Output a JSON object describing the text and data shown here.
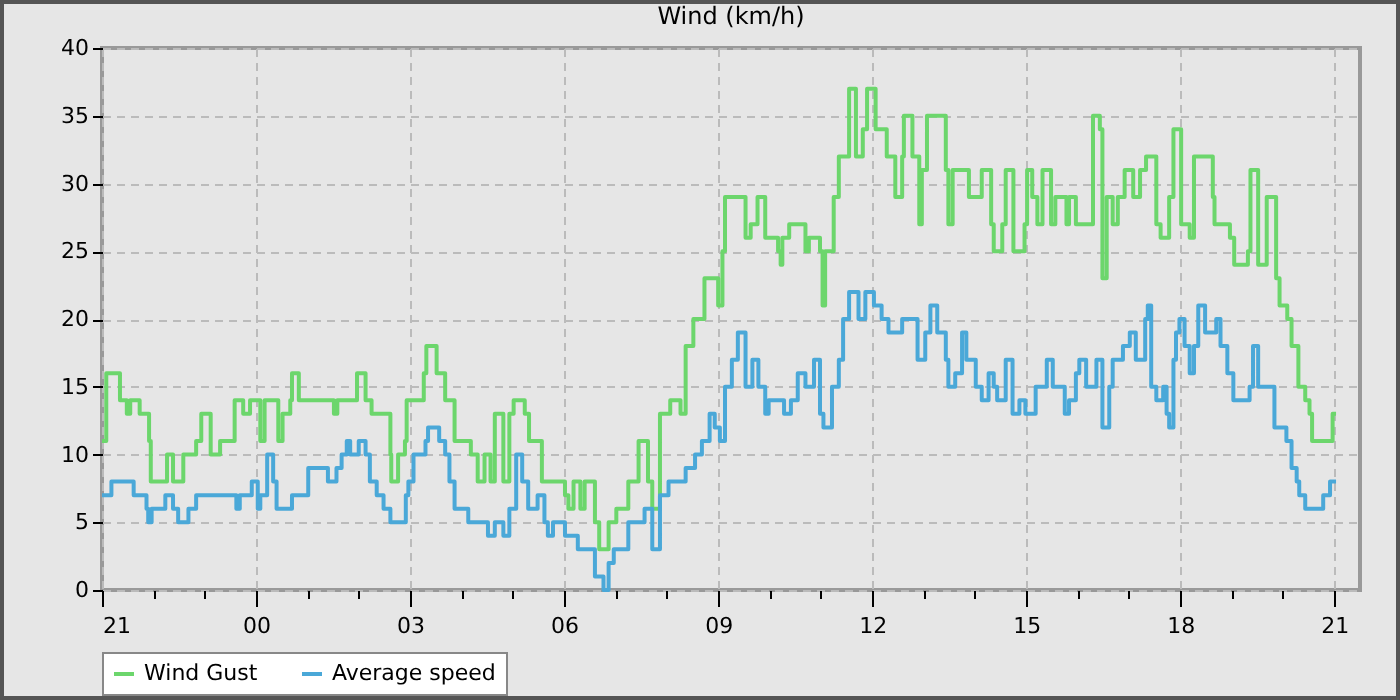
{
  "chart_data": {
    "type": "step",
    "title": "Wind (km/h)",
    "xlim": [
      "--01-01T21:00",
      "--01-02T21:30"
    ],
    "ylim": [
      0,
      40
    ],
    "xticks": [
      {
        "value": "--01-01T21:00",
        "label": "21"
      },
      {
        "value": "--01-01T22:00",
        "label": null
      },
      {
        "value": "--01-01T23:00",
        "label": null
      },
      {
        "value": "--01-02T00:00",
        "label": "00"
      },
      {
        "value": "--01-02T01:00",
        "label": null
      },
      {
        "value": "--01-02T02:00",
        "label": null
      },
      {
        "value": "--01-02T03:00",
        "label": "03"
      },
      {
        "value": "--01-02T04:00",
        "label": null
      },
      {
        "value": "--01-02T05:00",
        "label": null
      },
      {
        "value": "--01-02T06:00",
        "label": "06"
      },
      {
        "value": "--01-02T07:00",
        "label": null
      },
      {
        "value": "--01-02T08:00",
        "label": null
      },
      {
        "value": "--01-02T09:00",
        "label": "09"
      },
      {
        "value": "--01-02T10:00",
        "label": null
      },
      {
        "value": "--01-02T11:00",
        "label": null
      },
      {
        "value": "--01-02T12:00",
        "label": "12"
      },
      {
        "value": "--01-02T13:00",
        "label": null
      },
      {
        "value": "--01-02T14:00",
        "label": null
      },
      {
        "value": "--01-02T15:00",
        "label": "15"
      },
      {
        "value": "--01-02T16:00",
        "label": null
      },
      {
        "value": "--01-02T17:00",
        "label": null
      },
      {
        "value": "--01-02T18:00",
        "label": "18"
      },
      {
        "value": "--01-02T19:00",
        "label": null
      },
      {
        "value": "--01-02T20:00",
        "label": null
      },
      {
        "value": "--01-02T21:00",
        "label": "21"
      }
    ],
    "yticks": [
      0,
      5,
      10,
      15,
      20,
      25,
      30,
      35,
      40
    ],
    "grid": true,
    "legend": "bottom",
    "line_style": "solid",
    "marker": "none",
    "series": [
      {
        "name": "Wind Gust",
        "color": "#6cd66c",
        "x": [
          "--01-01T21:00",
          "--01-01T21:05",
          "--01-01T21:21",
          "--01-01T21:29",
          "--01-01T21:33",
          "--01-01T21:44",
          "--01-01T21:55",
          "--01-01T21:57",
          "--01-01T22:16",
          "--01-01T22:23",
          "--01-01T22:35",
          "--01-01T22:50",
          "--01-01T22:56",
          "--01-01T23:07",
          "--01-01T23:18",
          "--01-01T23:35",
          "--01-01T23:45",
          "--01-01T23:53",
          "--01-02T00:05",
          "--01-02T00:10",
          "--01-02T00:26",
          "--01-02T00:31",
          "--01-02T00:40",
          "--01-02T00:42",
          "--01-02T00:50",
          "--01-02T01:31",
          "--01-02T01:35",
          "--01-02T01:58",
          "--01-02T02:08",
          "--01-02T02:15",
          "--01-02T02:37",
          "--01-02T02:38",
          "--01-02T02:46",
          "--01-02T02:54",
          "--01-02T02:56",
          "--01-02T03:16",
          "--01-02T03:19",
          "--01-02T03:31",
          "--01-02T03:41",
          "--01-02T03:52",
          "--01-02T04:11",
          "--01-02T04:19",
          "--01-02T04:27",
          "--01-02T04:34",
          "--01-02T04:39",
          "--01-02T04:49",
          "--01-02T04:56",
          "--01-02T05:01",
          "--01-02T05:14",
          "--01-02T05:19",
          "--01-02T05:34",
          "--01-02T06:01",
          "--01-02T06:05",
          "--01-02T06:11",
          "--01-02T06:19",
          "--01-02T06:24",
          "--01-02T06:36",
          "--01-02T06:41",
          "--01-02T06:52",
          "--01-02T07:01",
          "--01-02T07:15",
          "--01-02T07:27",
          "--01-02T07:38",
          "--01-02T07:43",
          "--01-02T07:52",
          "--01-02T08:04",
          "--01-02T08:16",
          "--01-02T08:22",
          "--01-02T08:31",
          "--01-02T08:44",
          "--01-02T09:00",
          "--01-02T09:05",
          "--01-02T09:08",
          "--01-02T09:32",
          "--01-02T09:38",
          "--01-02T09:46",
          "--01-02T09:55",
          "--01-02T10:10",
          "--01-02T10:13",
          "--01-02T10:15",
          "--01-02T10:23",
          "--01-02T10:42",
          "--01-02T10:46",
          "--01-02T10:59",
          "--01-02T11:02",
          "--01-02T11:05",
          "--01-02T11:15",
          "--01-02T11:21",
          "--01-02T11:33",
          "--01-02T11:41",
          "--01-02T11:49",
          "--01-02T11:54",
          "--01-02T12:04",
          "--01-02T12:17",
          "--01-02T12:27",
          "--01-02T12:35",
          "--01-02T12:37",
          "--01-02T12:47",
          "--01-02T12:55",
          "--01-02T12:58",
          "--01-02T13:04",
          "--01-02T13:26",
          "--01-02T13:29",
          "--01-02T13:34",
          "--01-02T13:53",
          "--01-02T14:08",
          "--01-02T14:19",
          "--01-02T14:22",
          "--01-02T14:32",
          "--01-02T14:36",
          "--01-02T14:45",
          "--01-02T14:58",
          "--01-02T15:01",
          "--01-02T15:07",
          "--01-02T15:13",
          "--01-02T15:19",
          "--01-02T15:29",
          "--01-02T15:34",
          "--01-02T15:47",
          "--01-02T15:50",
          "--01-02T15:58",
          "--01-02T16:18",
          "--01-02T16:26",
          "--01-02T16:29",
          "--01-02T16:34",
          "--01-02T16:41",
          "--01-02T16:47",
          "--01-02T16:55",
          "--01-02T17:05",
          "--01-02T17:13",
          "--01-02T17:20",
          "--01-02T17:32",
          "--01-02T17:37",
          "--01-02T17:47",
          "--01-02T17:52",
          "--01-02T18:01",
          "--01-02T18:11",
          "--01-02T18:16",
          "--01-02T18:38",
          "--01-02T18:40",
          "--01-02T18:58",
          "--01-02T19:03",
          "--01-02T19:19",
          "--01-02T19:22",
          "--01-02T19:31",
          "--01-02T19:41",
          "--01-02T19:52",
          "--01-02T19:56",
          "--01-02T20:05",
          "--01-02T20:10",
          "--01-02T20:18",
          "--01-02T20:26",
          "--01-02T20:31",
          "--01-02T20:34",
          "--01-02T20:58",
          "--01-02T21:02"
        ],
        "values": [
          11,
          16,
          14,
          13,
          14,
          13,
          11,
          8,
          10,
          8,
          10,
          11,
          13,
          10,
          11,
          14,
          13,
          14,
          11,
          14,
          11,
          13,
          14,
          16,
          14,
          13,
          14,
          16,
          14,
          13,
          10,
          8,
          10,
          11,
          14,
          16,
          18,
          16,
          14,
          11,
          10,
          8,
          10,
          8,
          13,
          8,
          13,
          14,
          13,
          11,
          8,
          7,
          6,
          8,
          6,
          8,
          5,
          3,
          5,
          6,
          8,
          11,
          8,
          6,
          13,
          14,
          13,
          18,
          20,
          23,
          21,
          25,
          29,
          26,
          27,
          29,
          26,
          25,
          24,
          26,
          27,
          25,
          26,
          25,
          21,
          25,
          29,
          32,
          37,
          32,
          34,
          37,
          34,
          32,
          29,
          32,
          35,
          32,
          27,
          31,
          35,
          31,
          27,
          31,
          29,
          31,
          27,
          25,
          27,
          31,
          25,
          27,
          31,
          29,
          27,
          31,
          27,
          29,
          27,
          29,
          27,
          35,
          34,
          23,
          29,
          27,
          29,
          31,
          29,
          31,
          32,
          27,
          26,
          29,
          34,
          27,
          26,
          32,
          29,
          27,
          26,
          24,
          25,
          31,
          24,
          29,
          23,
          21,
          20,
          18,
          15,
          14,
          13,
          11,
          13,
          13
        ]
      },
      {
        "name": "Average speed",
        "color": "#4aa8d8",
        "x": [
          "--01-01T21:00",
          "--01-01T21:11",
          "--01-01T21:37",
          "--01-01T21:52",
          "--01-01T21:54",
          "--01-01T21:58",
          "--01-01T22:14",
          "--01-01T22:23",
          "--01-01T22:29",
          "--01-01T22:41",
          "--01-01T22:50",
          "--01-01T23:37",
          "--01-01T23:41",
          "--01-01T23:55",
          "--01-02T00:02",
          "--01-02T00:05",
          "--01-02T00:13",
          "--01-02T00:20",
          "--01-02T00:24",
          "--01-02T00:42",
          "--01-02T01:01",
          "--01-02T01:24",
          "--01-02T01:34",
          "--01-02T01:40",
          "--01-02T01:46",
          "--01-02T01:50",
          "--01-02T02:00",
          "--01-02T02:08",
          "--01-02T02:13",
          "--01-02T02:21",
          "--01-02T02:29",
          "--01-02T02:37",
          "--01-02T02:55",
          "--01-02T02:58",
          "--01-02T03:04",
          "--01-02T03:18",
          "--01-02T03:21",
          "--01-02T03:34",
          "--01-02T03:41",
          "--01-02T03:46",
          "--01-02T03:52",
          "--01-02T04:08",
          "--01-02T04:31",
          "--01-02T04:39",
          "--01-02T04:49",
          "--01-02T04:56",
          "--01-02T05:04",
          "--01-02T05:11",
          "--01-02T05:18",
          "--01-02T05:29",
          "--01-02T05:37",
          "--01-02T05:41",
          "--01-02T05:47",
          "--01-02T06:01",
          "--01-02T06:16",
          "--01-02T06:36",
          "--01-02T06:46",
          "--01-02T06:52",
          "--01-02T06:58",
          "--01-02T07:15",
          "--01-02T07:34",
          "--01-02T07:43",
          "--01-02T07:52",
          "--01-02T08:02",
          "--01-02T08:22",
          "--01-02T08:33",
          "--01-02T08:41",
          "--01-02T08:50",
          "--01-02T08:56",
          "--01-02T09:02",
          "--01-02T09:08",
          "--01-02T09:16",
          "--01-02T09:23",
          "--01-02T09:32",
          "--01-02T09:40",
          "--01-02T09:47",
          "--01-02T09:55",
          "--01-02T09:59",
          "--01-02T10:17",
          "--01-02T10:25",
          "--01-02T10:33",
          "--01-02T10:42",
          "--01-02T10:52",
          "--01-02T10:59",
          "--01-02T11:03",
          "--01-02T11:13",
          "--01-02T11:21",
          "--01-02T11:26",
          "--01-02T11:33",
          "--01-02T11:44",
          "--01-02T11:52",
          "--01-02T12:02",
          "--01-02T12:11",
          "--01-02T12:19",
          "--01-02T12:35",
          "--01-02T12:53",
          "--01-02T13:02",
          "--01-02T13:08",
          "--01-02T13:16",
          "--01-02T13:26",
          "--01-02T13:29",
          "--01-02T13:37",
          "--01-02T13:45",
          "--01-02T13:50",
          "--01-02T14:01",
          "--01-02T14:08",
          "--01-02T14:16",
          "--01-02T14:22",
          "--01-02T14:26",
          "--01-02T14:36",
          "--01-02T14:44",
          "--01-02T14:52",
          "--01-02T14:59",
          "--01-02T15:11",
          "--01-02T15:24",
          "--01-02T15:31",
          "--01-02T15:45",
          "--01-02T15:50",
          "--01-02T15:58",
          "--01-02T16:02",
          "--01-02T16:10",
          "--01-02T16:22",
          "--01-02T16:29",
          "--01-02T16:37",
          "--01-02T16:41",
          "--01-02T16:53",
          "--01-02T17:01",
          "--01-02T17:08",
          "--01-02T17:19",
          "--01-02T17:22",
          "--01-02T17:26",
          "--01-02T17:32",
          "--01-02T17:40",
          "--01-02T17:44",
          "--01-02T17:47",
          "--01-02T17:52",
          "--01-02T17:55",
          "--01-02T17:59",
          "--01-02T18:05",
          "--01-02T18:11",
          "--01-02T18:16",
          "--01-02T18:21",
          "--01-02T18:29",
          "--01-02T18:42",
          "--01-02T18:47",
          "--01-02T18:55",
          "--01-02T19:02",
          "--01-02T19:21",
          "--01-02T19:25",
          "--01-02T19:31",
          "--01-02T19:50",
          "--01-02T20:04",
          "--01-02T20:10",
          "--01-02T20:16",
          "--01-02T20:19",
          "--01-02T20:26",
          "--01-02T20:47",
          "--01-02T20:55",
          "--01-02T21:02"
        ],
        "values": [
          7,
          8,
          7,
          6,
          5,
          6,
          7,
          6,
          5,
          6,
          7,
          6,
          7,
          8,
          6,
          7,
          10,
          8,
          6,
          7,
          9,
          8,
          9,
          10,
          11,
          10,
          11,
          10,
          8,
          7,
          6,
          5,
          7,
          8,
          10,
          11,
          12,
          11,
          10,
          8,
          6,
          5,
          4,
          5,
          4,
          6,
          10,
          8,
          6,
          7,
          5,
          4,
          5,
          4,
          3,
          1,
          0,
          2,
          3,
          5,
          6,
          3,
          7,
          8,
          9,
          10,
          11,
          13,
          12,
          11,
          15,
          17,
          19,
          15,
          17,
          15,
          13,
          14,
          13,
          14,
          16,
          15,
          17,
          13,
          12,
          15,
          17,
          20,
          22,
          20,
          22,
          21,
          20,
          19,
          20,
          17,
          19,
          21,
          19,
          17,
          15,
          16,
          19,
          17,
          15,
          14,
          16,
          15,
          14,
          17,
          13,
          14,
          13,
          15,
          17,
          15,
          13,
          14,
          16,
          17,
          15,
          17,
          12,
          15,
          17,
          18,
          19,
          17,
          20,
          21,
          15,
          14,
          15,
          13,
          12,
          17,
          19,
          20,
          18,
          16,
          18,
          21,
          19,
          20,
          18,
          16,
          14,
          15,
          18,
          15,
          12,
          11,
          9,
          8,
          7,
          6,
          7,
          8,
          8
        ]
      }
    ]
  }
}
